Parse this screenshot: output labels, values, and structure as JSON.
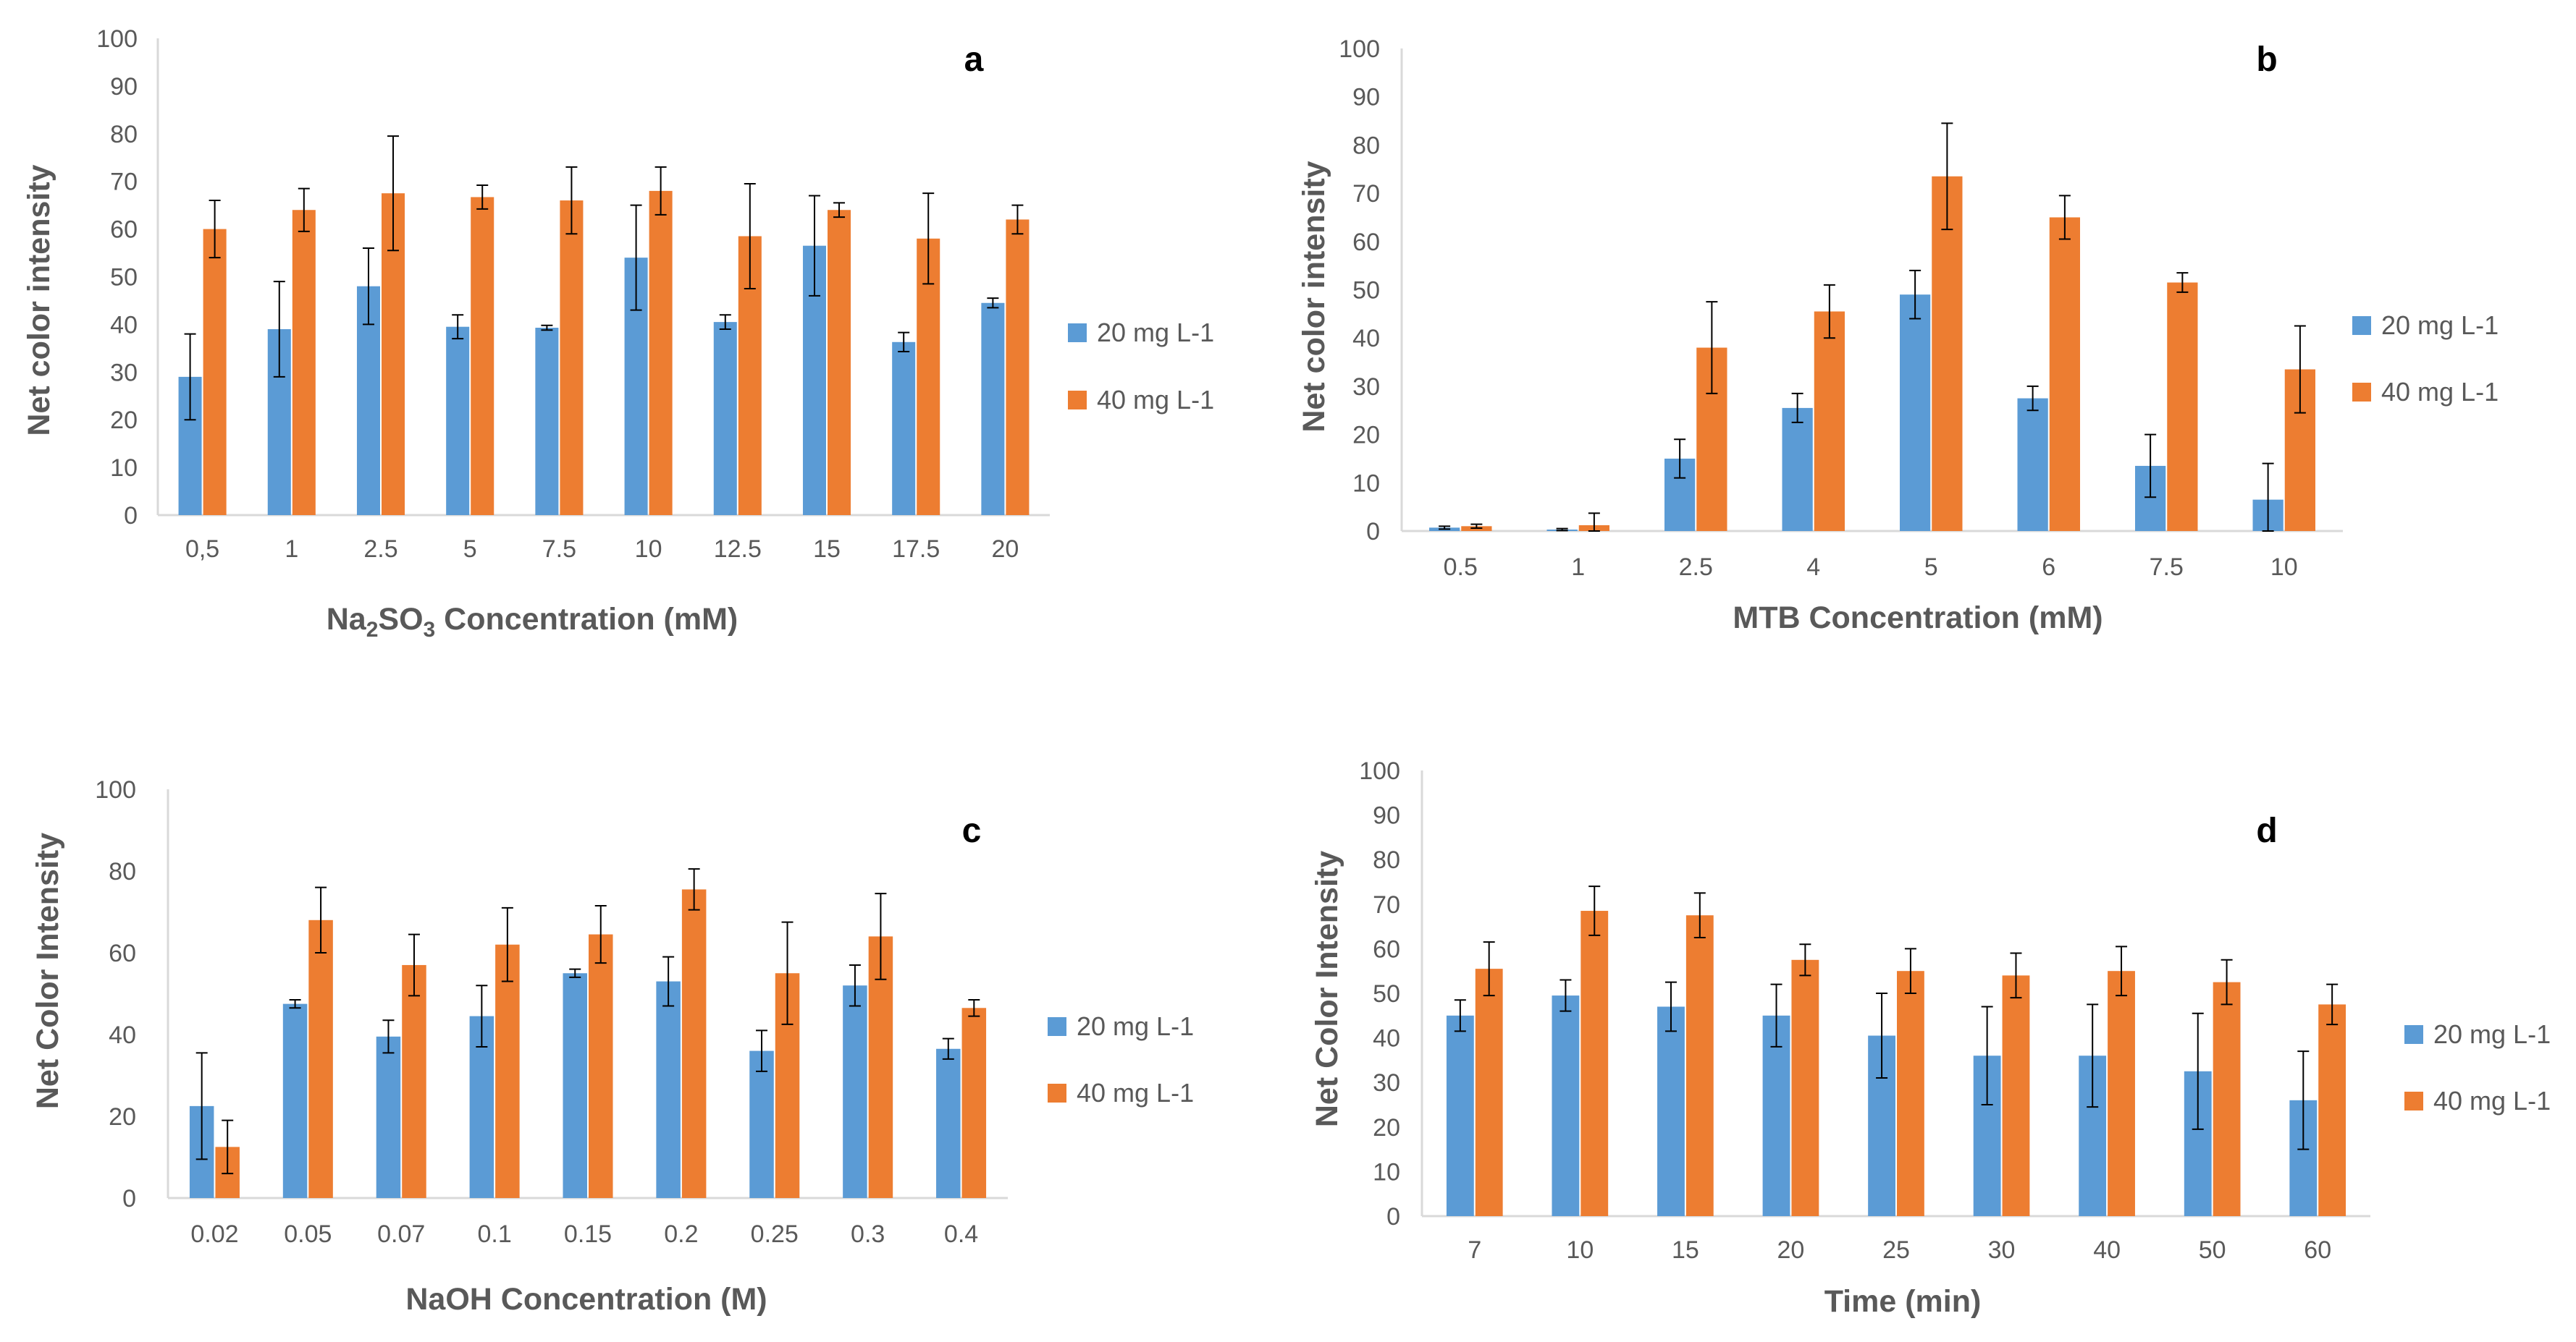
{
  "chart_data": [
    {
      "type": "bar",
      "label": "a",
      "categories": [
        "0,5",
        "1",
        "2.5",
        "5",
        "7.5",
        "10",
        "12.5",
        "15",
        "17.5",
        "20"
      ],
      "series": [
        {
          "name": "20 mg L-1",
          "color": "#5B9BD5",
          "values": [
            29,
            39,
            48,
            39.5,
            39.3,
            54,
            40.5,
            56.5,
            36.3,
            44.5
          ],
          "errors": [
            9,
            10,
            8,
            2.5,
            0.5,
            11,
            1.5,
            10.5,
            2,
            1
          ]
        },
        {
          "name": "40 mg L-1",
          "color": "#ED7D31",
          "values": [
            60,
            64,
            67.5,
            66.7,
            66,
            68,
            58.5,
            64,
            58,
            62
          ],
          "errors": [
            6,
            4.5,
            12,
            2.5,
            7,
            5,
            11,
            1.5,
            9.5,
            3
          ]
        }
      ],
      "title": "",
      "xlabel_main": "Na",
      "xlabel_sub1": "2",
      "xlabel_mid": "SO",
      "xlabel_sub2": "3",
      "xlabel_rest": " Concentration (mM)",
      "ylabel": "Net color intensity",
      "ylim": [
        0,
        100
      ],
      "yticks": [
        "0",
        "10",
        "20",
        "30",
        "40",
        "50",
        "60",
        "70",
        "80",
        "90",
        "100"
      ]
    },
    {
      "type": "bar",
      "label": "b",
      "categories": [
        "0.5",
        "1",
        "2.5",
        "4",
        "5",
        "6",
        "7.5",
        "10"
      ],
      "series": [
        {
          "name": "20 mg L-1",
          "color": "#5B9BD5",
          "values": [
            0.7,
            0.3,
            15,
            25.5,
            49,
            27.5,
            13.5,
            6.5
          ],
          "errors": [
            0.3,
            0.2,
            4,
            3,
            5,
            2.5,
            6.5,
            7.5
          ]
        },
        {
          "name": "40 mg L-1",
          "color": "#ED7D31",
          "values": [
            1,
            1.2,
            38,
            45.5,
            73.5,
            65,
            51.5,
            33.5
          ],
          "errors": [
            0.4,
            2.5,
            9.5,
            5.5,
            11,
            4.5,
            2,
            9
          ]
        }
      ],
      "title": "",
      "xlabel": "MTB Concentration (mM)",
      "ylabel": "Net color intensity",
      "ylim": [
        0,
        100
      ],
      "yticks": [
        "0",
        "10",
        "20",
        "30",
        "40",
        "50",
        "60",
        "70",
        "80",
        "90",
        "100"
      ]
    },
    {
      "type": "bar",
      "label": "c",
      "categories": [
        "0.02",
        "0.05",
        "0.07",
        "0.1",
        "0.15",
        "0.2",
        "0.25",
        "0.3",
        "0.4"
      ],
      "series": [
        {
          "name": "20 mg L-1",
          "color": "#5B9BD5",
          "values": [
            22.5,
            47.5,
            39.5,
            44.5,
            55,
            53,
            36,
            52,
            36.5
          ],
          "errors": [
            13,
            1,
            4,
            7.5,
            1,
            6,
            5,
            5,
            2.5
          ]
        },
        {
          "name": "40 mg L-1",
          "color": "#ED7D31",
          "values": [
            12.5,
            68,
            57,
            62,
            64.5,
            75.5,
            55,
            64,
            46.5
          ],
          "errors": [
            6.5,
            8,
            7.5,
            9,
            7,
            5,
            12.5,
            10.5,
            2
          ]
        }
      ],
      "title": "",
      "xlabel": "NaOH Concentration (M)",
      "ylabel": "Net Color Intensity",
      "ylim": [
        0,
        100
      ],
      "yticks": [
        "0",
        "20",
        "40",
        "60",
        "80",
        "100"
      ]
    },
    {
      "type": "bar",
      "label": "d",
      "categories": [
        "7",
        "10",
        "15",
        "20",
        "25",
        "30",
        "40",
        "50",
        "60"
      ],
      "series": [
        {
          "name": "20 mg L-1",
          "color": "#5B9BD5",
          "values": [
            45,
            49.5,
            47,
            45,
            40.5,
            36,
            36,
            32.5,
            26
          ],
          "errors": [
            3.5,
            3.5,
            5.5,
            7,
            9.5,
            11,
            11.5,
            13,
            11
          ]
        },
        {
          "name": "40 mg L-1",
          "color": "#ED7D31",
          "values": [
            55.5,
            68.5,
            67.5,
            57.5,
            55,
            54,
            55,
            52.5,
            47.5
          ],
          "errors": [
            6,
            5.5,
            5,
            3.5,
            5,
            5,
            5.5,
            5,
            4.5
          ]
        }
      ],
      "title": "",
      "xlabel": "Time (min)",
      "ylabel": "Net Color Intensity",
      "ylim": [
        0,
        100
      ],
      "yticks": [
        "0",
        "10",
        "20",
        "30",
        "40",
        "50",
        "60",
        "70",
        "80",
        "90",
        "100"
      ]
    }
  ]
}
